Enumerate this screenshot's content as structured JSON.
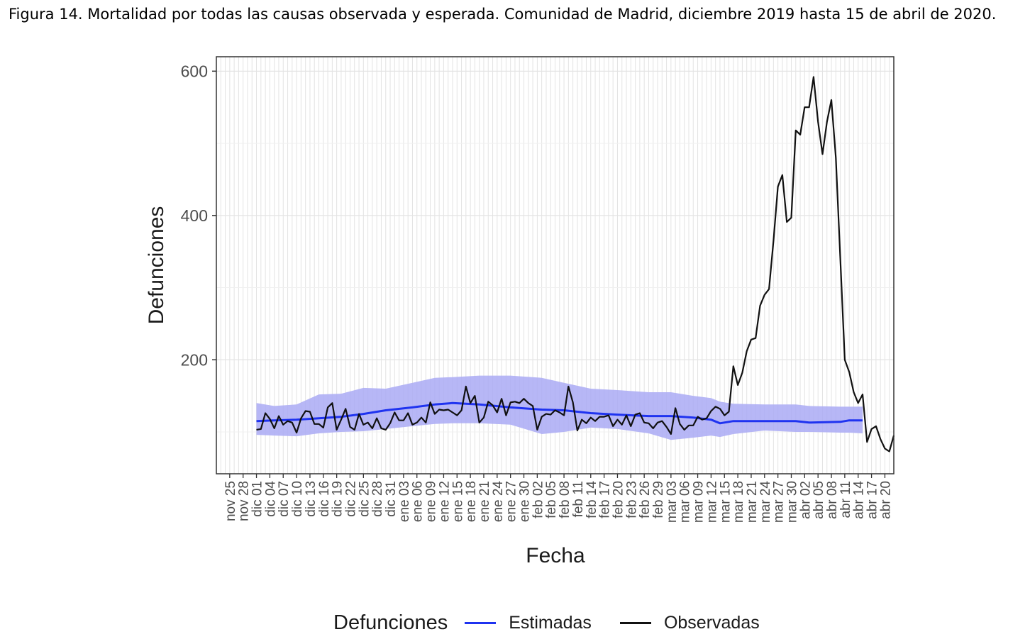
{
  "figure_caption": "Figura 14. Mortalidad por todas las causas observada y esperada. Comunidad de Madrid, diciembre 2019 hasta 15 de abril de 2020.",
  "colors": {
    "estimated_line": "#1f33f0",
    "estimated_band": "#aaaaf5",
    "observed_line": "#111111",
    "panel_border": "#333333",
    "grid_major": "#e3e3e3",
    "grid_minor": "#f0f0f0"
  },
  "chart_data": {
    "type": "line",
    "title": "",
    "xlabel": "Fecha",
    "ylabel": "Defunciones",
    "x_axis": {
      "type": "date",
      "range": [
        "2019-11-22",
        "2020-04-22"
      ],
      "tick_labels": [
        "nov 25",
        "nov 28",
        "dic 01",
        "dic 04",
        "dic 07",
        "dic 10",
        "dic 13",
        "dic 16",
        "dic 19",
        "dic 22",
        "dic 25",
        "dic 28",
        "dic 31",
        "ene 03",
        "ene 06",
        "ene 09",
        "ene 12",
        "ene 15",
        "ene 18",
        "ene 21",
        "ene 24",
        "ene 27",
        "ene 30",
        "feb 02",
        "feb 05",
        "feb 08",
        "feb 11",
        "feb 14",
        "feb 17",
        "feb 20",
        "feb 23",
        "feb 26",
        "feb 29",
        "mar 03",
        "mar 06",
        "mar 09",
        "mar 12",
        "mar 15",
        "mar 18",
        "mar 21",
        "mar 24",
        "mar 27",
        "mar 30",
        "abr 02",
        "abr 05",
        "abr 08",
        "abr 11",
        "abr 14",
        "abr 17",
        "abr 20"
      ]
    },
    "y_axis": {
      "range": [
        42,
        620
      ],
      "ticks": [
        200,
        400,
        600
      ]
    },
    "grid": true,
    "legend": {
      "position": "bottom",
      "title": "Defunciones",
      "entries": [
        {
          "name": "Estimadas",
          "color": "#1f33f0"
        },
        {
          "name": "Observadas",
          "color": "#111111"
        }
      ]
    },
    "series": [
      {
        "name": "Estimadas",
        "color": "#1f33f0",
        "points": [
          [
            "2019-12-01",
            115
          ],
          [
            "2019-12-05",
            116
          ],
          [
            "2019-12-10",
            117
          ],
          [
            "2019-12-15",
            119
          ],
          [
            "2019-12-20",
            121
          ],
          [
            "2019-12-25",
            125
          ],
          [
            "2019-12-30",
            130
          ],
          [
            "2020-01-05",
            134
          ],
          [
            "2020-01-10",
            138
          ],
          [
            "2020-01-14",
            140
          ],
          [
            "2020-01-20",
            138
          ],
          [
            "2020-01-27",
            134
          ],
          [
            "2020-02-03",
            131
          ],
          [
            "2020-02-08",
            130
          ],
          [
            "2020-02-14",
            126
          ],
          [
            "2020-02-20",
            124
          ],
          [
            "2020-02-27",
            122
          ],
          [
            "2020-03-03",
            122
          ],
          [
            "2020-03-08",
            120
          ],
          [
            "2020-03-12",
            117
          ],
          [
            "2020-03-14",
            112
          ],
          [
            "2020-03-17",
            115
          ],
          [
            "2020-03-24",
            115
          ],
          [
            "2020-03-31",
            115
          ],
          [
            "2020-04-03",
            113
          ],
          [
            "2020-04-10",
            114
          ],
          [
            "2020-04-12",
            116
          ],
          [
            "2020-04-15",
            116
          ]
        ]
      },
      {
        "name": "Observadas",
        "color": "#111111",
        "points": [
          [
            "2019-12-01",
            103
          ],
          [
            "2019-12-02",
            104
          ],
          [
            "2019-12-03",
            126
          ],
          [
            "2019-12-04",
            118
          ],
          [
            "2019-12-05",
            105
          ],
          [
            "2019-12-06",
            122
          ],
          [
            "2019-12-07",
            110
          ],
          [
            "2019-12-08",
            115
          ],
          [
            "2019-12-09",
            113
          ],
          [
            "2019-12-10",
            99
          ],
          [
            "2019-12-11",
            119
          ],
          [
            "2019-12-12",
            129
          ],
          [
            "2019-12-13",
            128
          ],
          [
            "2019-12-14",
            111
          ],
          [
            "2019-12-15",
            111
          ],
          [
            "2019-12-16",
            106
          ],
          [
            "2019-12-17",
            134
          ],
          [
            "2019-12-18",
            140
          ],
          [
            "2019-12-19",
            103
          ],
          [
            "2019-12-20",
            117
          ],
          [
            "2019-12-21",
            132
          ],
          [
            "2019-12-22",
            107
          ],
          [
            "2019-12-23",
            103
          ],
          [
            "2019-12-24",
            125
          ],
          [
            "2019-12-25",
            110
          ],
          [
            "2019-12-26",
            113
          ],
          [
            "2019-12-27",
            105
          ],
          [
            "2019-12-28",
            119
          ],
          [
            "2019-12-29",
            105
          ],
          [
            "2019-12-30",
            103
          ],
          [
            "2019-12-31",
            112
          ],
          [
            "2020-01-01",
            127
          ],
          [
            "2020-01-02",
            116
          ],
          [
            "2020-01-03",
            116
          ],
          [
            "2020-01-04",
            126
          ],
          [
            "2020-01-05",
            110
          ],
          [
            "2020-01-06",
            113
          ],
          [
            "2020-01-07",
            120
          ],
          [
            "2020-01-08",
            113
          ],
          [
            "2020-01-09",
            141
          ],
          [
            "2020-01-10",
            125
          ],
          [
            "2020-01-11",
            131
          ],
          [
            "2020-01-12",
            130
          ],
          [
            "2020-01-13",
            131
          ],
          [
            "2020-01-14",
            127
          ],
          [
            "2020-01-15",
            123
          ],
          [
            "2020-01-16",
            130
          ],
          [
            "2020-01-17",
            163
          ],
          [
            "2020-01-18",
            140
          ],
          [
            "2020-01-19",
            150
          ],
          [
            "2020-01-20",
            113
          ],
          [
            "2020-01-21",
            120
          ],
          [
            "2020-01-22",
            142
          ],
          [
            "2020-01-23",
            137
          ],
          [
            "2020-01-24",
            127
          ],
          [
            "2020-01-25",
            146
          ],
          [
            "2020-01-26",
            123
          ],
          [
            "2020-01-27",
            141
          ],
          [
            "2020-01-28",
            142
          ],
          [
            "2020-01-29",
            140
          ],
          [
            "2020-01-30",
            146
          ],
          [
            "2020-01-31",
            140
          ],
          [
            "2020-02-01",
            136
          ],
          [
            "2020-02-02",
            103
          ],
          [
            "2020-02-03",
            121
          ],
          [
            "2020-02-04",
            125
          ],
          [
            "2020-02-05",
            124
          ],
          [
            "2020-02-06",
            130
          ],
          [
            "2020-02-07",
            127
          ],
          [
            "2020-02-08",
            123
          ],
          [
            "2020-02-09",
            163
          ],
          [
            "2020-02-10",
            141
          ],
          [
            "2020-02-11",
            102
          ],
          [
            "2020-02-12",
            117
          ],
          [
            "2020-02-13",
            112
          ],
          [
            "2020-02-14",
            120
          ],
          [
            "2020-02-15",
            115
          ],
          [
            "2020-02-16",
            121
          ],
          [
            "2020-02-17",
            121
          ],
          [
            "2020-02-18",
            123
          ],
          [
            "2020-02-19",
            108
          ],
          [
            "2020-02-20",
            117
          ],
          [
            "2020-02-21",
            110
          ],
          [
            "2020-02-22",
            123
          ],
          [
            "2020-02-23",
            108
          ],
          [
            "2020-02-24",
            124
          ],
          [
            "2020-02-25",
            126
          ],
          [
            "2020-02-26",
            113
          ],
          [
            "2020-02-27",
            112
          ],
          [
            "2020-02-28",
            105
          ],
          [
            "2020-02-29",
            113
          ],
          [
            "2020-03-01",
            115
          ],
          [
            "2020-03-02",
            107
          ],
          [
            "2020-03-03",
            97
          ],
          [
            "2020-03-04",
            133
          ],
          [
            "2020-03-05",
            111
          ],
          [
            "2020-03-06",
            103
          ],
          [
            "2020-03-07",
            109
          ],
          [
            "2020-03-08",
            109
          ],
          [
            "2020-03-09",
            121
          ],
          [
            "2020-03-10",
            117
          ],
          [
            "2020-03-11",
            119
          ],
          [
            "2020-03-12",
            129
          ],
          [
            "2020-03-13",
            135
          ],
          [
            "2020-03-14",
            132
          ],
          [
            "2020-03-15",
            123
          ],
          [
            "2020-03-16",
            128
          ],
          [
            "2020-03-17",
            191
          ],
          [
            "2020-03-18",
            165
          ],
          [
            "2020-03-19",
            182
          ],
          [
            "2020-03-20",
            212
          ],
          [
            "2020-03-21",
            228
          ],
          [
            "2020-03-22",
            230
          ],
          [
            "2020-03-23",
            275
          ],
          [
            "2020-03-24",
            290
          ],
          [
            "2020-03-25",
            298
          ],
          [
            "2020-03-26",
            365
          ],
          [
            "2020-03-27",
            440
          ],
          [
            "2020-03-28",
            456
          ],
          [
            "2020-03-29",
            391
          ],
          [
            "2020-03-30",
            397
          ],
          [
            "2020-03-31",
            518
          ],
          [
            "2020-04-01",
            512
          ],
          [
            "2020-04-02",
            550
          ],
          [
            "2020-04-03",
            550
          ],
          [
            "2020-04-04",
            592
          ],
          [
            "2020-04-05",
            530
          ],
          [
            "2020-04-06",
            485
          ],
          [
            "2020-04-07",
            530
          ],
          [
            "2020-04-08",
            560
          ],
          [
            "2020-04-09",
            480
          ],
          [
            "2020-04-10",
            340
          ],
          [
            "2020-04-11",
            200
          ],
          [
            "2020-04-12",
            183
          ],
          [
            "2020-04-13",
            155
          ],
          [
            "2020-04-14",
            140
          ],
          [
            "2020-04-15",
            152
          ],
          [
            "2020-04-16",
            86
          ],
          [
            "2020-04-17",
            104
          ],
          [
            "2020-04-18",
            108
          ],
          [
            "2020-04-19",
            90
          ],
          [
            "2020-04-20",
            77
          ],
          [
            "2020-04-21",
            73
          ],
          [
            "2020-04-22",
            95
          ]
        ]
      }
    ],
    "band": {
      "series": "Estimadas",
      "points": [
        [
          "2019-12-01",
          96,
          140
        ],
        [
          "2019-12-05",
          95,
          136
        ],
        [
          "2019-12-10",
          94,
          138
        ],
        [
          "2019-12-15",
          98,
          152
        ],
        [
          "2019-12-20",
          100,
          153
        ],
        [
          "2019-12-25",
          101,
          161
        ],
        [
          "2019-12-30",
          104,
          160
        ],
        [
          "2020-01-05",
          108,
          168
        ],
        [
          "2020-01-10",
          111,
          175
        ],
        [
          "2020-01-14",
          112,
          176
        ],
        [
          "2020-01-20",
          112,
          178
        ],
        [
          "2020-01-27",
          110,
          178
        ],
        [
          "2020-02-03",
          97,
          175
        ],
        [
          "2020-02-08",
          100,
          168
        ],
        [
          "2020-02-14",
          106,
          160
        ],
        [
          "2020-02-20",
          104,
          158
        ],
        [
          "2020-02-27",
          98,
          155
        ],
        [
          "2020-03-03",
          89,
          155
        ],
        [
          "2020-03-08",
          92,
          150
        ],
        [
          "2020-03-12",
          95,
          147
        ],
        [
          "2020-03-14",
          93,
          142
        ],
        [
          "2020-03-17",
          97,
          139
        ],
        [
          "2020-03-24",
          102,
          138
        ],
        [
          "2020-03-31",
          100,
          138
        ],
        [
          "2020-04-03",
          100,
          136
        ],
        [
          "2020-04-10",
          99,
          135
        ],
        [
          "2020-04-12",
          99,
          135
        ],
        [
          "2020-04-15",
          98,
          135
        ]
      ]
    }
  }
}
